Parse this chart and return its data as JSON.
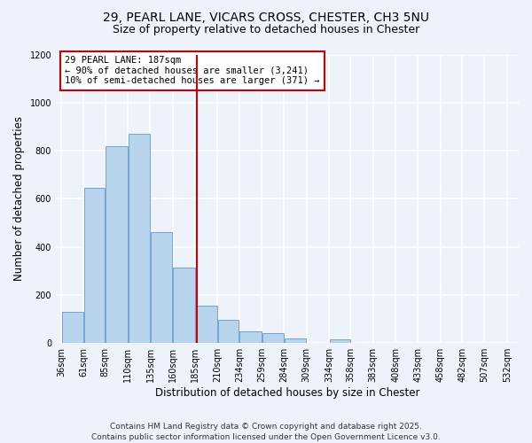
{
  "title_line1": "29, PEARL LANE, VICARS CROSS, CHESTER, CH3 5NU",
  "title_line2": "Size of property relative to detached houses in Chester",
  "xlabel": "Distribution of detached houses by size in Chester",
  "ylabel": "Number of detached properties",
  "bar_left_edges": [
    36,
    61,
    85,
    110,
    135,
    160,
    185,
    210,
    234,
    259,
    284,
    309,
    334,
    358,
    383,
    408,
    433,
    458,
    482,
    507
  ],
  "bar_widths": [
    25,
    24,
    25,
    25,
    25,
    25,
    25,
    24,
    25,
    25,
    25,
    25,
    24,
    25,
    25,
    25,
    25,
    24,
    25,
    25
  ],
  "bar_heights": [
    130,
    645,
    820,
    870,
    460,
    315,
    155,
    95,
    50,
    40,
    20,
    0,
    15,
    0,
    0,
    0,
    0,
    0,
    0,
    0
  ],
  "bar_color": "#b8d4ec",
  "bar_edgecolor": "#6699cc",
  "x_tick_labels": [
    "36sqm",
    "61sqm",
    "85sqm",
    "110sqm",
    "135sqm",
    "160sqm",
    "185sqm",
    "210sqm",
    "234sqm",
    "259sqm",
    "284sqm",
    "309sqm",
    "334sqm",
    "358sqm",
    "383sqm",
    "408sqm",
    "433sqm",
    "458sqm",
    "482sqm",
    "507sqm",
    "532sqm"
  ],
  "x_tick_positions": [
    36,
    61,
    85,
    110,
    135,
    160,
    185,
    210,
    234,
    259,
    284,
    309,
    334,
    358,
    383,
    408,
    433,
    458,
    482,
    507,
    532
  ],
  "ylim": [
    0,
    1200
  ],
  "xlim": [
    30,
    545
  ],
  "vline_x": 187,
  "vline_color": "#cc0000",
  "annotation_title": "29 PEARL LANE: 187sqm",
  "annotation_line1": "← 90% of detached houses are smaller (3,241)",
  "annotation_line2": "10% of semi-detached houses are larger (371) →",
  "annotation_box_color": "#cc0000",
  "footnote_line1": "Contains HM Land Registry data © Crown copyright and database right 2025.",
  "footnote_line2": "Contains public sector information licensed under the Open Government Licence v3.0.",
  "bg_color": "#eef2fb",
  "grid_color": "#ffffff",
  "title_fontsize": 10,
  "subtitle_fontsize": 9,
  "axis_label_fontsize": 8.5,
  "tick_fontsize": 7,
  "annotation_fontsize": 7.5,
  "footnote_fontsize": 6.5
}
